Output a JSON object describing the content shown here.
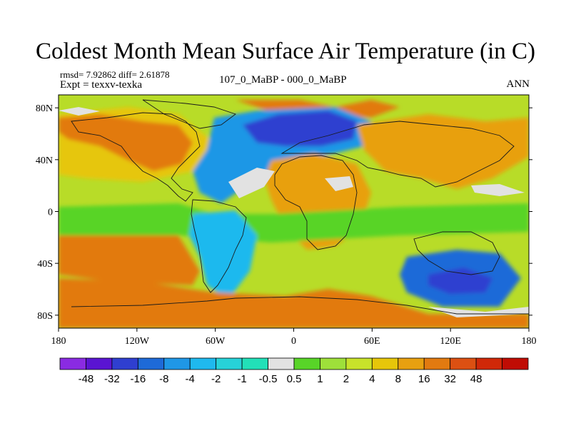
{
  "title": "Coldest Month Mean Surface Air Temperature (in C)",
  "stats": "rmsd= 7.92862 diff= 2.61878",
  "experiment": "Expt = texxv-texka",
  "period": "107_0_MaBP - 000_0_MaBP",
  "season": "ANN",
  "map_data": {
    "projection": "equirectangular",
    "lon_range": [
      -180,
      180
    ],
    "lat_range": [
      -90,
      90
    ],
    "y_ticks": [
      {
        "lat": 80,
        "label": "80N"
      },
      {
        "lat": 40,
        "label": "40N"
      },
      {
        "lat": 0,
        "label": "0"
      },
      {
        "lat": -40,
        "label": "40S"
      },
      {
        "lat": -80,
        "label": "80S"
      }
    ],
    "x_ticks": [
      {
        "lon": -180,
        "label": "180"
      },
      {
        "lon": -120,
        "label": "120W"
      },
      {
        "lon": -60,
        "label": "60W"
      },
      {
        "lon": 0,
        "label": "0"
      },
      {
        "lon": 60,
        "label": "60E"
      },
      {
        "lon": 120,
        "label": "120E"
      },
      {
        "lon": 180,
        "label": "180"
      }
    ]
  },
  "colorbar": {
    "colors": [
      "#8a2be2",
      "#5a14d2",
      "#2f3fd0",
      "#1e6ad8",
      "#1f97e6",
      "#1fb9ee",
      "#27d2d8",
      "#22e0b8",
      "#e2e2e2",
      "#58d428",
      "#9ee03a",
      "#c8e22a",
      "#e6c60a",
      "#e8a010",
      "#e27a10",
      "#dc5012",
      "#d02808",
      "#c00c04"
    ],
    "labels": [
      "-48",
      "-32",
      "-16",
      "-8",
      "-4",
      "-2",
      "-1",
      "-0.5",
      "0.5",
      "1",
      "2",
      "4",
      "8",
      "16",
      "32",
      "48"
    ]
  },
  "regions": [
    {
      "name": "base-ocean",
      "color": "#b8dc28"
    },
    {
      "name": "north-pacific",
      "color": "#e6c60a"
    },
    {
      "name": "north-america-warm",
      "color": "#e27a10"
    },
    {
      "name": "siberia-cold",
      "color": "#2f3fd0"
    },
    {
      "name": "eurasia-cool",
      "color": "#1f97e6"
    },
    {
      "name": "africa-warm",
      "color": "#e8a010"
    },
    {
      "name": "tropics-green",
      "color": "#58d428"
    },
    {
      "name": "south-america-cold",
      "color": "#1fb9ee"
    },
    {
      "name": "antarctic-warm",
      "color": "#e27a10"
    },
    {
      "name": "australia-cold",
      "color": "#1e6ad8"
    }
  ]
}
